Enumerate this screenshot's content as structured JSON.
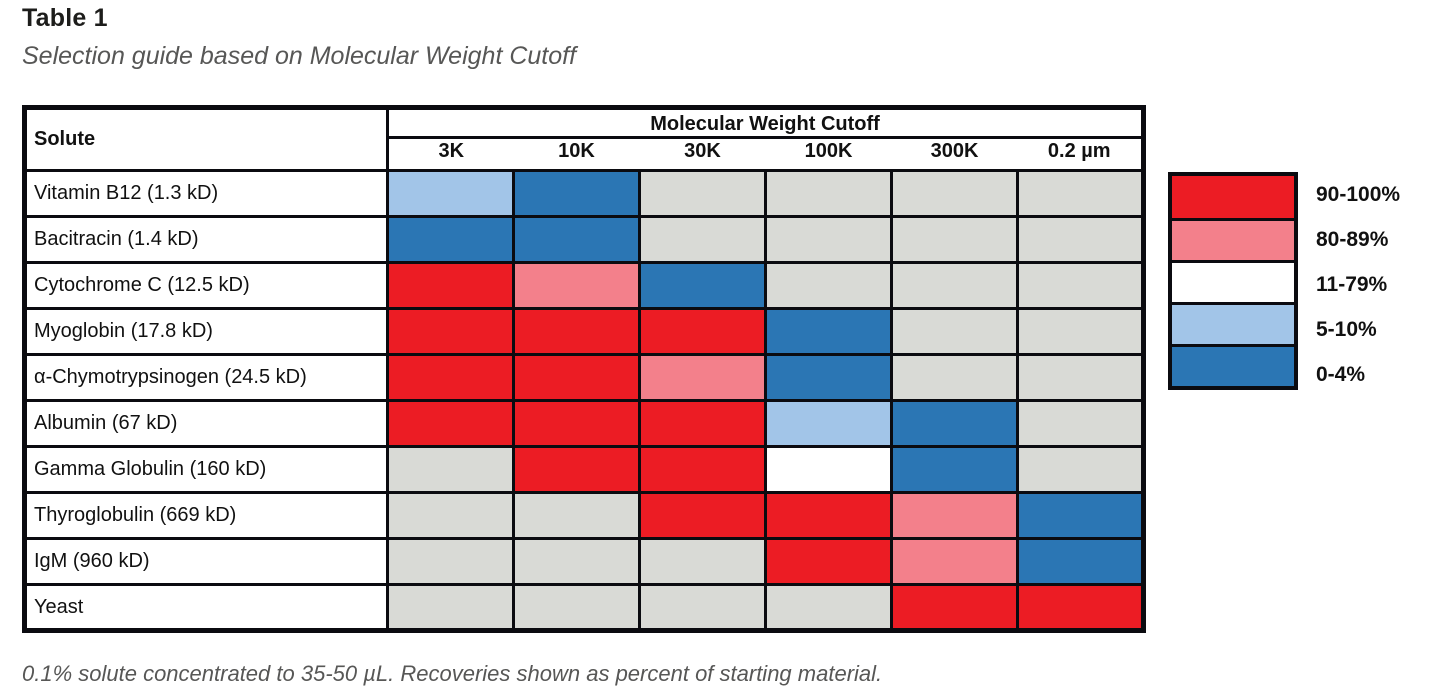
{
  "title": "Table 1",
  "subtitle": "Selection guide based on Molecular Weight Cutoff",
  "footnote": "0.1% solute concentrated to 35-50 µL. Recoveries shown as percent of starting material.",
  "colors": {
    "red": "#ec1c24",
    "pink": "#f3808b",
    "white": "#ffffff",
    "lightblue": "#a2c5e8",
    "darkblue": "#2b76b4",
    "untested_gray": "#d9dad6",
    "border": "#0b0b10"
  },
  "chart_data": {
    "type": "heatmap",
    "title": "Table 1",
    "subtitle": "Selection guide based on Molecular Weight Cutoff",
    "row_header": "Solute",
    "column_group_label": "Molecular Weight Cutoff",
    "columns": [
      "3K",
      "10K",
      "30K",
      "100K",
      "300K",
      "0.2 µm"
    ],
    "legend": [
      {
        "label": "90-100%",
        "color_key": "red"
      },
      {
        "label": "80-89%",
        "color_key": "pink"
      },
      {
        "label": "11-79%",
        "color_key": "white"
      },
      {
        "label": "5-10%",
        "color_key": "lightblue"
      },
      {
        "label": "0-4%",
        "color_key": "darkblue"
      }
    ],
    "empty_color_key": "untested_gray",
    "rows": [
      {
        "label": "Vitamin B12 (1.3 kD)",
        "recoveries": [
          "5-10%",
          "0-4%",
          null,
          null,
          null,
          null
        ]
      },
      {
        "label": "Bacitracin (1.4 kD)",
        "recoveries": [
          "0-4%",
          "0-4%",
          null,
          null,
          null,
          null
        ]
      },
      {
        "label": "Cytochrome C (12.5 kD)",
        "recoveries": [
          "90-100%",
          "80-89%",
          "0-4%",
          null,
          null,
          null
        ]
      },
      {
        "label": "Myoglobin (17.8 kD)",
        "recoveries": [
          "90-100%",
          "90-100%",
          "90-100%",
          "0-4%",
          null,
          null
        ]
      },
      {
        "label": "α-Chymotrypsinogen (24.5 kD)",
        "recoveries": [
          "90-100%",
          "90-100%",
          "80-89%",
          "0-4%",
          null,
          null
        ]
      },
      {
        "label": "Albumin (67 kD)",
        "recoveries": [
          "90-100%",
          "90-100%",
          "90-100%",
          "5-10%",
          "0-4%",
          null
        ]
      },
      {
        "label": "Gamma Globulin (160 kD)",
        "recoveries": [
          null,
          "90-100%",
          "90-100%",
          "11-79%",
          "0-4%",
          null
        ]
      },
      {
        "label": "Thyroglobulin (669 kD)",
        "recoveries": [
          null,
          null,
          "90-100%",
          "90-100%",
          "80-89%",
          "0-4%"
        ]
      },
      {
        "label": "IgM (960 kD)",
        "recoveries": [
          null,
          null,
          null,
          "90-100%",
          "80-89%",
          "0-4%"
        ]
      },
      {
        "label": "Yeast",
        "recoveries": [
          null,
          null,
          null,
          null,
          "90-100%",
          "90-100%"
        ]
      }
    ]
  }
}
